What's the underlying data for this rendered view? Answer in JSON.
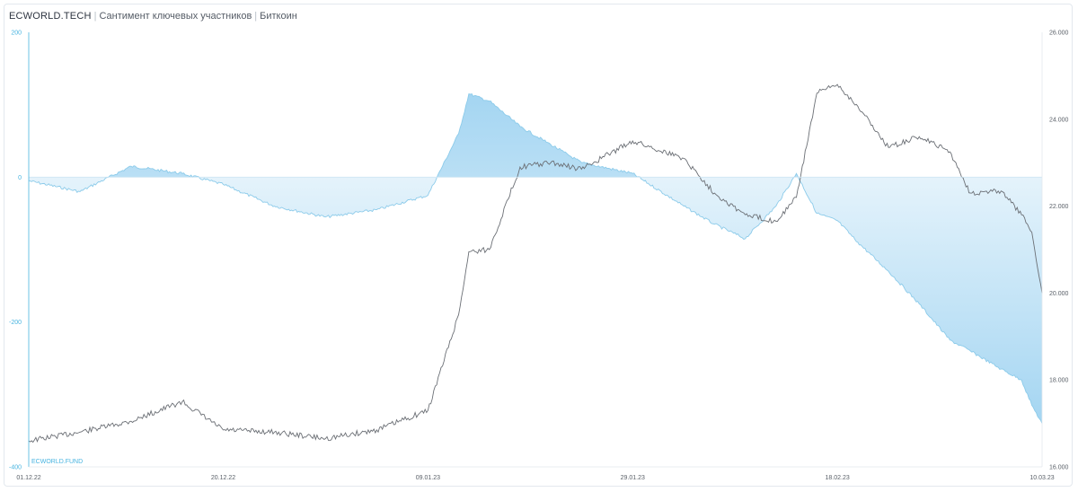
{
  "header": {
    "brand": "ECWORLD.TECH",
    "separator": "|",
    "subtitle": "Сантимент ключевых участников",
    "asset": "Биткоин"
  },
  "watermark": "ECWORLD.FUND",
  "colors": {
    "sentiment_line": "#8ccbea",
    "sentiment_fill": "#9fd3f1",
    "price_line": "#6b6f75",
    "left_axis": "#48b4e0",
    "right_axis_text": "#5a6068",
    "zero_line": "#cfe6f3"
  },
  "chart_data": {
    "type": "area",
    "x_tick_labels": [
      "01.12.22",
      "20.12.22",
      "09.01.23",
      "29.01.23",
      "18.02.23",
      "10.03.23"
    ],
    "x": [
      "01.12.22",
      "06.12.22",
      "11.12.22",
      "16.12.22",
      "20.12.22",
      "25.12.22",
      "30.12.22",
      "04.01.23",
      "09.01.23",
      "12.01.23",
      "13.01.23",
      "15.01.23",
      "18.01.23",
      "21.01.23",
      "24.01.23",
      "29.01.23",
      "03.02.23",
      "06.02.23",
      "09.02.23",
      "12.02.23",
      "14.02.23",
      "16.02.23",
      "18.02.23",
      "20.02.23",
      "23.02.23",
      "26.02.23",
      "01.03.23",
      "03.03.23",
      "06.03.23",
      "08.03.23",
      "09.03.23",
      "10.03.23"
    ],
    "left_axis": {
      "ylim": [
        -400,
        200
      ],
      "ticks": [
        200,
        0,
        -200,
        -400
      ]
    },
    "right_axis": {
      "ylim": [
        16000,
        26000
      ],
      "ticks": [
        "16.000",
        "18.000",
        "20.000",
        "22.000",
        "24.000",
        "26.000"
      ]
    },
    "grid": false,
    "series": [
      {
        "axis": "left",
        "style": "area-from-zero",
        "values": [
          -5,
          -20,
          15,
          5,
          -10,
          -40,
          -55,
          -45,
          -25,
          60,
          115,
          105,
          70,
          45,
          20,
          5,
          -40,
          -65,
          -85,
          -40,
          5,
          -50,
          -60,
          -90,
          -130,
          -175,
          -225,
          -240,
          -265,
          -280,
          -315,
          -340
        ]
      },
      {
        "axis": "right",
        "style": "line",
        "values": [
          16600,
          16800,
          17050,
          17500,
          16850,
          16800,
          16650,
          16850,
          17300,
          19500,
          20950,
          21000,
          22900,
          23000,
          22850,
          23500,
          23100,
          22300,
          21800,
          21650,
          22200,
          24600,
          24800,
          24300,
          23350,
          23600,
          23250,
          22300,
          22350,
          21800,
          21400,
          20000
        ]
      }
    ]
  }
}
